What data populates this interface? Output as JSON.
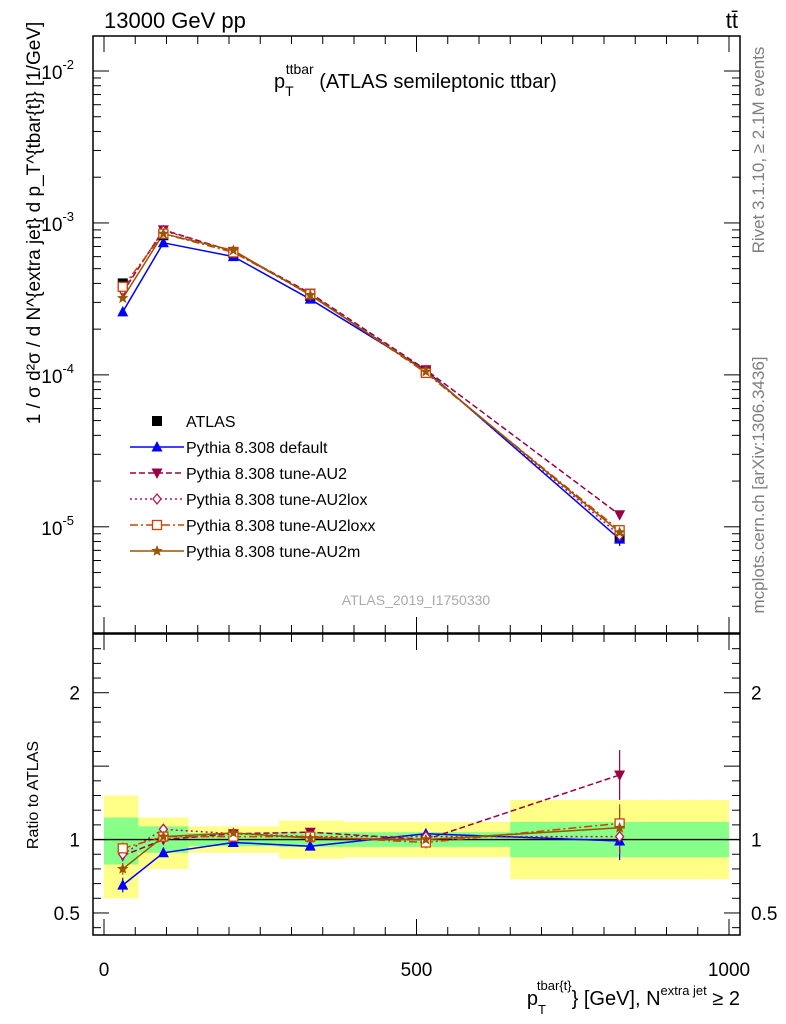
{
  "header": {
    "energy_label": "13000 GeV pp",
    "process_label": "tt̄",
    "watermark": "ATLAS_2019_I1750330",
    "rivet_label": "Rivet 3.1.10, ≥ 2.1M events",
    "source_label": "mcplots.cern.ch [arXiv:1306.3436]"
  },
  "chart_data": [
    {
      "type": "line",
      "panel": "main",
      "title": {
        "main": "p",
        "sub": "T",
        "sup": "ttbar",
        "rest": " (ATLAS semileptonic ttbar)"
      },
      "ylabel": "1 / σ d²σ / d N^{extra jet} d p_T^{tbar{t}} [1/GeV]",
      "yscale": "log",
      "ylim": [
        2e-06,
        0.017
      ],
      "xlim": [
        -30,
        1030
      ],
      "yticks": [
        {
          "value": 1e-05,
          "base": "10",
          "exp": "-5"
        },
        {
          "value": 0.0001,
          "base": "10",
          "exp": "-4"
        },
        {
          "value": 0.001,
          "base": "10",
          "exp": "-3"
        },
        {
          "value": 0.01,
          "base": "10",
          "exp": "-2"
        }
      ],
      "x": [
        30,
        95,
        207,
        330,
        515,
        825
      ],
      "data": {
        "name": "ATLAS",
        "values": [
          0.0004,
          0.00083,
          0.00063,
          0.00033,
          0.000105,
          8.5e-06
        ],
        "errors": [
          3e-05,
          5e-05,
          3e-05,
          2e-05,
          5e-06,
          1e-06
        ]
      },
      "series": [
        {
          "name": "Pythia 8.308 default",
          "color": "#0000ff",
          "dash": "",
          "marker": "triangle-up",
          "values": [
            0.00026,
            0.00074,
            0.0006,
            0.000315,
            0.000107,
            8.3e-06
          ]
        },
        {
          "name": "Pythia 8.308 tune-AU2",
          "color": "#990044",
          "dash": "6,3",
          "marker": "triangle-down",
          "values": [
            0.00035,
            0.0009,
            0.00065,
            0.000345,
            0.000108,
            1.2e-05
          ]
        },
        {
          "name": "Pythia 8.308 tune-AU2lox",
          "color": "#bb1155",
          "dash": "2,3",
          "marker": "diamond-open",
          "values": [
            0.00036,
            0.00089,
            0.00065,
            0.000335,
            0.000106,
            8.8e-06
          ]
        },
        {
          "name": "Pythia 8.308 tune-AU2loxx",
          "color": "#cc4400",
          "dash": "8,3,2,3",
          "marker": "square-open",
          "values": [
            0.00038,
            0.00085,
            0.00064,
            0.00034,
            0.000103,
            9.5e-06
          ]
        },
        {
          "name": "Pythia 8.308 tune-AU2m",
          "color": "#995500",
          "dash": "",
          "marker": "star",
          "values": [
            0.00032,
            0.00085,
            0.00066,
            0.000335,
            0.000105,
            9.2e-06
          ]
        }
      ]
    },
    {
      "type": "line",
      "panel": "ratio",
      "ylabel": "Ratio to ATLAS",
      "xlabel": {
        "p": "p",
        "sub": "T",
        "sup": "tbar{t}",
        "mid": "} [GeV], N",
        "sup2": "extra jet",
        "end": " ≥ 2"
      },
      "ylim": [
        0.35,
        2.4
      ],
      "yticks": [
        {
          "value": 0.5,
          "label": "0.5"
        },
        {
          "value": 1,
          "label": "1"
        },
        {
          "value": 2,
          "label": "2"
        }
      ],
      "xticks": [
        {
          "value": 0,
          "label": "0"
        },
        {
          "value": 500,
          "label": "500"
        },
        {
          "value": 1000,
          "label": "1000"
        }
      ],
      "bins": [
        {
          "lo": 0,
          "hi": 55,
          "green": [
            0.83,
            1.15
          ],
          "yellow": [
            0.6,
            1.3
          ]
        },
        {
          "lo": 55,
          "hi": 135,
          "green": [
            0.91,
            1.09
          ],
          "yellow": [
            0.8,
            1.15
          ]
        },
        {
          "lo": 135,
          "hi": 280,
          "green": [
            0.955,
            1.045
          ],
          "yellow": [
            0.91,
            1.09
          ]
        },
        {
          "lo": 280,
          "hi": 385,
          "green": [
            0.95,
            1.05
          ],
          "yellow": [
            0.87,
            1.13
          ]
        },
        {
          "lo": 385,
          "hi": 650,
          "green": [
            0.95,
            1.05
          ],
          "yellow": [
            0.88,
            1.12
          ]
        },
        {
          "lo": 650,
          "hi": 1000,
          "green": [
            0.88,
            1.12
          ],
          "yellow": [
            0.73,
            1.27
          ]
        }
      ],
      "x": [
        30,
        95,
        207,
        330,
        515,
        825
      ],
      "series": [
        {
          "name": "Pythia 8.308 default",
          "values": [
            0.69,
            0.91,
            0.98,
            0.955,
            1.04,
            0.99
          ],
          "errors": [
            0.05,
            0.02,
            0.015,
            0.03,
            0.03,
            0.13
          ]
        },
        {
          "name": "Pythia 8.308 tune-AU2",
          "values": [
            0.89,
            1.0,
            1.04,
            1.05,
            1.0,
            1.44
          ],
          "errors": [
            0.03,
            0.02,
            0.02,
            0.03,
            0.04,
            0.17
          ]
        },
        {
          "name": "Pythia 8.308 tune-AU2lox",
          "values": [
            0.9,
            1.07,
            1.04,
            1.02,
            1.02,
            1.02
          ],
          "errors": [
            0.03,
            0.02,
            0.02,
            0.03,
            0.04,
            0.12
          ]
        },
        {
          "name": "Pythia 8.308 tune-AU2loxx",
          "values": [
            0.94,
            1.02,
            1.02,
            1.02,
            0.98,
            1.11
          ],
          "errors": [
            0.04,
            0.02,
            0.02,
            0.03,
            0.04,
            0.13
          ]
        },
        {
          "name": "Pythia 8.308 tune-AU2m",
          "values": [
            0.8,
            1.02,
            1.045,
            1.01,
            1.0,
            1.08
          ],
          "errors": [
            0.04,
            0.02,
            0.02,
            0.03,
            0.04,
            0.13
          ]
        }
      ]
    }
  ]
}
